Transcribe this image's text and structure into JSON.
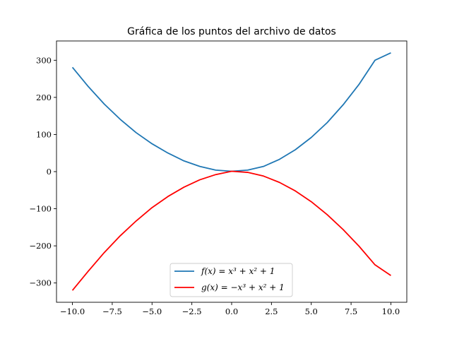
{
  "chart_data": {
    "type": "line",
    "title": "Gráfica de los puntos del archivo de datos",
    "xlabel": "",
    "ylabel": "",
    "xlim": [
      -11.0,
      11.0
    ],
    "ylim": [
      -352,
      352
    ],
    "xticks": [
      -10.0,
      -7.5,
      -5.0,
      -2.5,
      0.0,
      2.5,
      5.0,
      7.5,
      10.0
    ],
    "xtick_labels": [
      "−10.0",
      "−7.5",
      "−5.0",
      "−2.5",
      "0.0",
      "2.5",
      "5.0",
      "7.5",
      "10.0"
    ],
    "yticks": [
      -300,
      -200,
      -100,
      0,
      100,
      200,
      300
    ],
    "ytick_labels": [
      "−300",
      "−200",
      "−100",
      "0",
      "100",
      "200",
      "300"
    ],
    "grid": false,
    "legend_position": "lower-center",
    "series": [
      {
        "name": "f(x) = x³ + x² + 1",
        "color": "#1f77b4",
        "x": [
          -10,
          -9,
          -8,
          -7,
          -6,
          -5,
          -4,
          -3,
          -2,
          -1,
          0,
          1,
          2,
          3,
          4,
          5,
          6,
          7,
          8,
          9,
          10
        ],
        "y": [
          281,
          229,
          182,
          141,
          105,
          75,
          50,
          29,
          14,
          4,
          1,
          4,
          14,
          33,
          59,
          92,
          132,
          180,
          235,
          300,
          320
        ]
      },
      {
        "name": "g(x) = −x³ + x² + 1",
        "color": "#ff0000",
        "x": [
          -10,
          -9,
          -8,
          -7,
          -6,
          -5,
          -4,
          -3,
          -2,
          -1,
          0,
          1,
          2,
          3,
          4,
          5,
          6,
          7,
          8,
          9,
          10
        ],
        "y": [
          -320,
          -268,
          -218,
          -173,
          -133,
          -97,
          -67,
          -42,
          -22,
          -8,
          1,
          -2,
          -12,
          -29,
          -52,
          -81,
          -116,
          -156,
          -201,
          -251,
          -280
        ]
      }
    ]
  }
}
